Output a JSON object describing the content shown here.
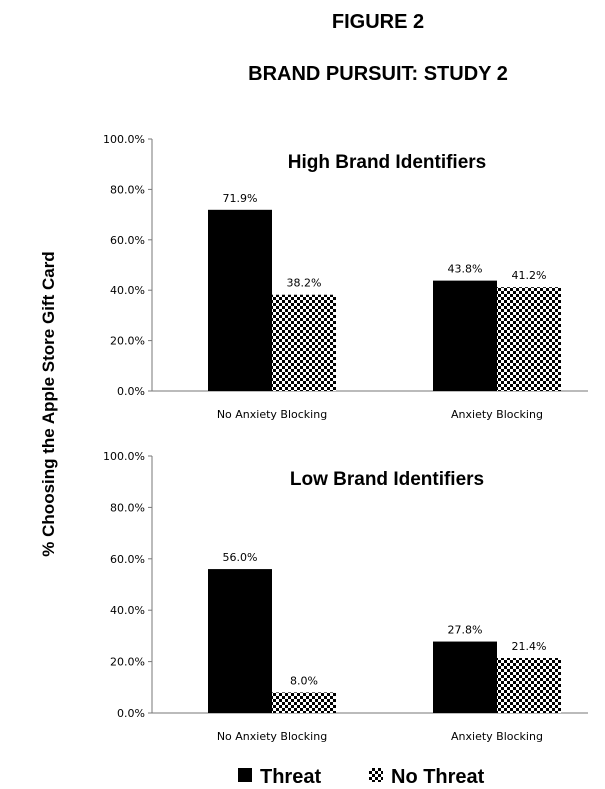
{
  "figure": {
    "label": "FIGURE 2",
    "title": "BRAND PURSUIT: STUDY 2",
    "ylabel": "% Choosing the Apple Store Gift Card"
  },
  "legend": [
    {
      "name": "Threat",
      "pattern": "solid"
    },
    {
      "name": "No Threat",
      "pattern": "checker"
    }
  ],
  "colors": {
    "bar": "#000000",
    "checker_light": "#ffffff",
    "axis": "#555555"
  },
  "chart_data": [
    {
      "type": "bar",
      "title": "High Brand Identifiers",
      "categories": [
        "No Anxiety Blocking",
        "Anxiety Blocking"
      ],
      "series": [
        {
          "name": "Threat",
          "values": [
            71.9,
            43.8
          ],
          "labels": [
            "71.9%",
            "43.8%"
          ]
        },
        {
          "name": "No Threat",
          "values": [
            38.2,
            41.2
          ],
          "labels": [
            "38.2%",
            "41.2%"
          ]
        }
      ],
      "ylim": [
        0,
        100
      ],
      "yticks": [
        "0.0%",
        "20.0%",
        "40.0%",
        "60.0%",
        "80.0%",
        "100.0%"
      ],
      "grid": false
    },
    {
      "type": "bar",
      "title": "Low Brand Identifiers",
      "categories": [
        "No Anxiety Blocking",
        "Anxiety Blocking"
      ],
      "series": [
        {
          "name": "Threat",
          "values": [
            56.0,
            27.8
          ],
          "labels": [
            "56.0%",
            "27.8%"
          ]
        },
        {
          "name": "No Threat",
          "values": [
            8.0,
            21.4
          ],
          "labels": [
            "8.0%",
            "21.4%"
          ]
        }
      ],
      "ylim": [
        0,
        100
      ],
      "yticks": [
        "0.0%",
        "20.0%",
        "40.0%",
        "60.0%",
        "80.0%",
        "100.0%"
      ],
      "grid": false
    }
  ]
}
